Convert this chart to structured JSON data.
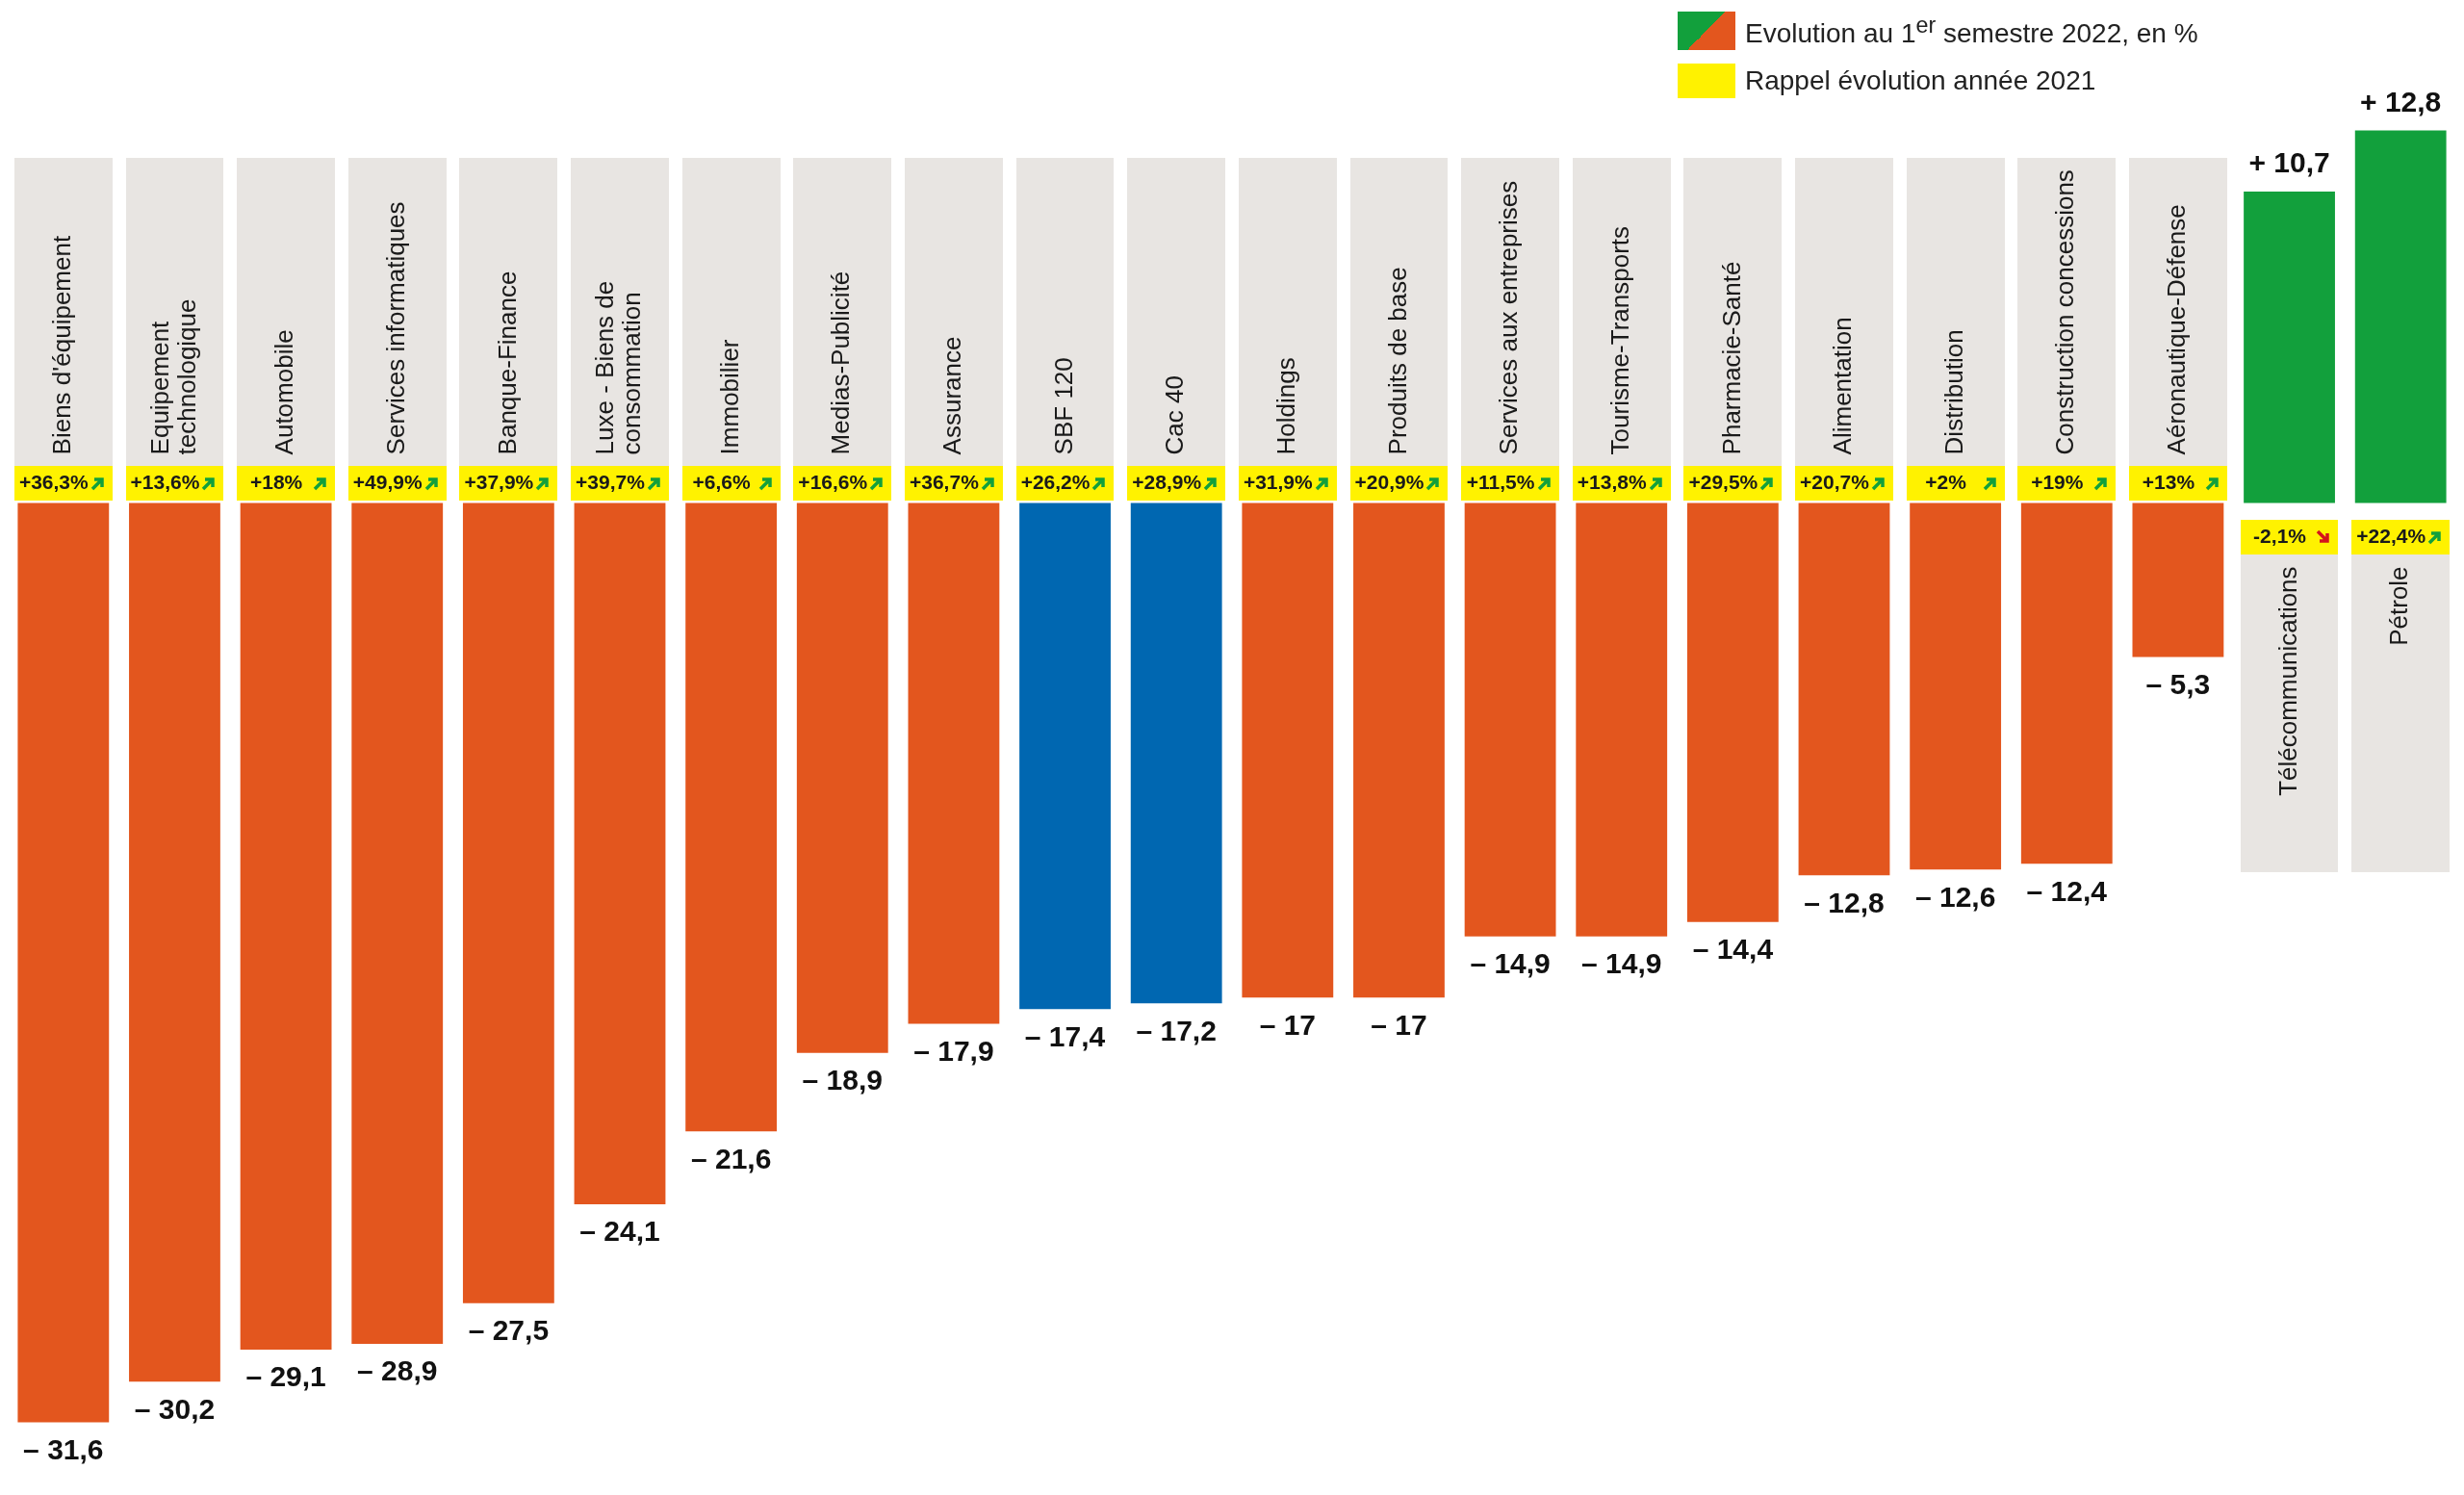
{
  "chart_data": {
    "type": "bar",
    "legend": "top right",
    "categories": [
      "Biens d'équipement",
      "Equipement technologique",
      "Automobile",
      "Services informatiques",
      "Banque-Finance",
      "Luxe - Biens de consommation",
      "Immobilier",
      "Medias-Publicité",
      "Assurance",
      "SBF 120",
      "Cac 40",
      "Holdings",
      "Produits de base",
      "Services aux entreprises",
      "Tourisme-Transports",
      "Pharmacie-Santé",
      "Alimentation",
      "Distribution",
      "Construction concessions",
      "Aéronautique-Défense",
      "Télécommunications",
      "Pétrole"
    ],
    "series": [
      {
        "name": "Evolution au 1$^{er}$ semestre 2022, en %",
        "values": [
          -31.6,
          -30.2,
          -29.1,
          -28.9,
          -27.5,
          -24.1,
          -21.6,
          -18.9,
          -17.9,
          -17.4,
          -17.2,
          -17,
          -17,
          -14.9,
          -14.9,
          -14.4,
          -12.8,
          -12.6,
          -12.4,
          -5.3,
          10.7,
          12.8
        ],
        "value_labels": [
          "– 31,6",
          "– 30,2",
          "– 29,1",
          "– 28,9",
          "– 27,5",
          "– 24,1",
          "– 21,6",
          "– 18,9",
          "– 17,9",
          "– 17,4",
          "– 17,2",
          "– 17",
          "– 17",
          "– 14,9",
          "– 14,9",
          "– 14,4",
          "– 12,8",
          "– 12,6",
          "– 12,4",
          "– 5,3",
          "+ 10,7",
          "+ 12,8"
        ],
        "colors": [
          "#e3561e",
          "#e3561e",
          "#e3561e",
          "#e3561e",
          "#e3561e",
          "#e3561e",
          "#e3561e",
          "#e3561e",
          "#e3561e",
          "#0067b1",
          "#0067b1",
          "#e3561e",
          "#e3561e",
          "#e3561e",
          "#e3561e",
          "#e3561e",
          "#e3561e",
          "#e3561e",
          "#e3561e",
          "#e3561e",
          "#12a03c",
          "#12a03c"
        ]
      }
    ],
    "annotations": [
      "Rappel évolution année 2021",
      {
        "text": "+36,3%",
        "x": "Biens d'équipement",
        "y": 0
      },
      {
        "text": "+13,6%",
        "x": "Equipement technologique",
        "y": 0
      },
      {
        "text": "+18%",
        "x": "Automobile",
        "y": 0
      },
      {
        "text": "+49,9%",
        "x": "Services informatiques",
        "y": 0
      },
      {
        "text": "+37,9%",
        "x": "Banque-Finance",
        "y": 0
      },
      {
        "text": "+39,7%",
        "x": "Luxe - Biens de consommation",
        "y": 0
      },
      {
        "text": "+6,6%",
        "x": "Immobilier",
        "y": 0
      },
      {
        "text": "+16,6%",
        "x": "Medias-Publicité",
        "y": 0
      },
      {
        "text": "+36,7%",
        "x": "Assurance",
        "y": 0
      },
      {
        "text": "+26,2%",
        "x": "SBF 120",
        "y": 0
      },
      {
        "text": "+28,9%",
        "x": "Cac 40",
        "y": 0
      },
      {
        "text": "+31,9%",
        "x": "Holdings",
        "y": 0
      },
      {
        "text": "+20,9%",
        "x": "Produits de base",
        "y": 0
      },
      {
        "text": "+11,5%",
        "x": "Services aux entreprises",
        "y": 0
      },
      {
        "text": "+13,8%",
        "x": "Tourisme-Transports",
        "y": 0
      },
      {
        "text": "+29,5%",
        "x": "Pharmacie-Santé",
        "y": 0
      },
      {
        "text": "+20,7%",
        "x": "Alimentation",
        "y": 0
      },
      {
        "text": "+2%",
        "x": "Distribution",
        "y": 0
      },
      {
        "text": "+19%",
        "x": "Construction concessions",
        "y": 0
      },
      {
        "text": "+13%",
        "x": "Aéronautique-Défense",
        "y": 0
      },
      {
        "text": "-2,1%",
        "x": "Télécommunications",
        "y": 0
      },
      {
        "text": "+22,4%",
        "x": "Pétrole",
        "y": 0
      }
    ]
  }
}
